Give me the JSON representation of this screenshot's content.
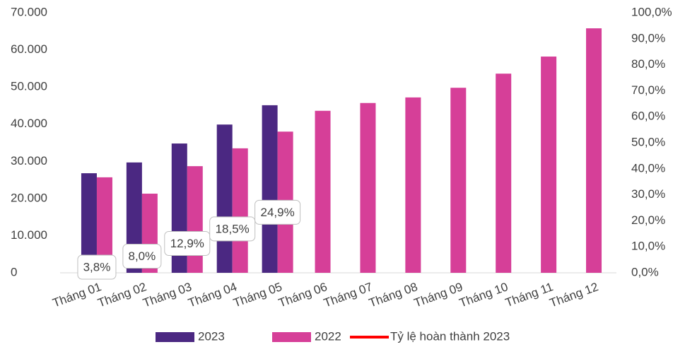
{
  "chart_data": {
    "type": "bar",
    "categories": [
      "Tháng 01",
      "Tháng 02",
      "Tháng 03",
      "Tháng 04",
      "Tháng 05",
      "Tháng 06",
      "Tháng 07",
      "Tháng 08",
      "Tháng 09",
      "Tháng 10",
      "Tháng 11",
      "Tháng 12"
    ],
    "series": [
      {
        "name": "2023",
        "color": "#4b2882",
        "values": [
          26800,
          29700,
          34800,
          39900,
          45100,
          null,
          null,
          null,
          null,
          null,
          null,
          null
        ]
      },
      {
        "name": "2022",
        "color": "#d63f98",
        "values": [
          25700,
          21300,
          28700,
          33500,
          38000,
          43600,
          45700,
          47200,
          49800,
          53600,
          58200,
          65800
        ]
      },
      {
        "name": "Tỷ lệ hoàn thành 2023",
        "type": "line",
        "axis": "y2",
        "color": "#ff0000",
        "values": [
          3.8,
          8.0,
          12.9,
          18.5,
          24.9,
          null,
          null,
          null,
          null,
          null,
          null,
          null
        ],
        "value_labels": [
          "3,8%",
          "8,0%",
          "12,9%",
          "18,5%",
          "24,9%",
          null,
          null,
          null,
          null,
          null,
          null,
          null
        ]
      }
    ],
    "ylim": [
      0,
      70000
    ],
    "yticks": [
      0,
      {
        "value": 10000,
        "label": "10.000"
      },
      {
        "value": 20000,
        "label": "20.000"
      },
      {
        "value": 30000,
        "label": "30.000"
      },
      {
        "value": 40000,
        "label": "40.000"
      },
      {
        "value": 50000,
        "label": "50.000"
      },
      {
        "value": 60000,
        "label": "60.000"
      },
      {
        "value": 70000,
        "label": "70.000"
      }
    ],
    "y2lim": [
      0,
      100
    ],
    "y2ticks": [
      {
        "value": 0,
        "label": "0,0%"
      },
      {
        "value": 10,
        "label": "10,0%"
      },
      {
        "value": 20,
        "label": "20,0%"
      },
      {
        "value": 30,
        "label": "30,0%"
      },
      {
        "value": 40,
        "label": "40,0%"
      },
      {
        "value": 50,
        "label": "50,0%"
      },
      {
        "value": 60,
        "label": "60,0%"
      },
      {
        "value": 70,
        "label": "70,0%"
      },
      {
        "value": 80,
        "label": "80,0%"
      },
      {
        "value": 90,
        "label": "90,0%"
      },
      {
        "value": 100,
        "label": "100,0%"
      }
    ],
    "legend": "bottom"
  }
}
